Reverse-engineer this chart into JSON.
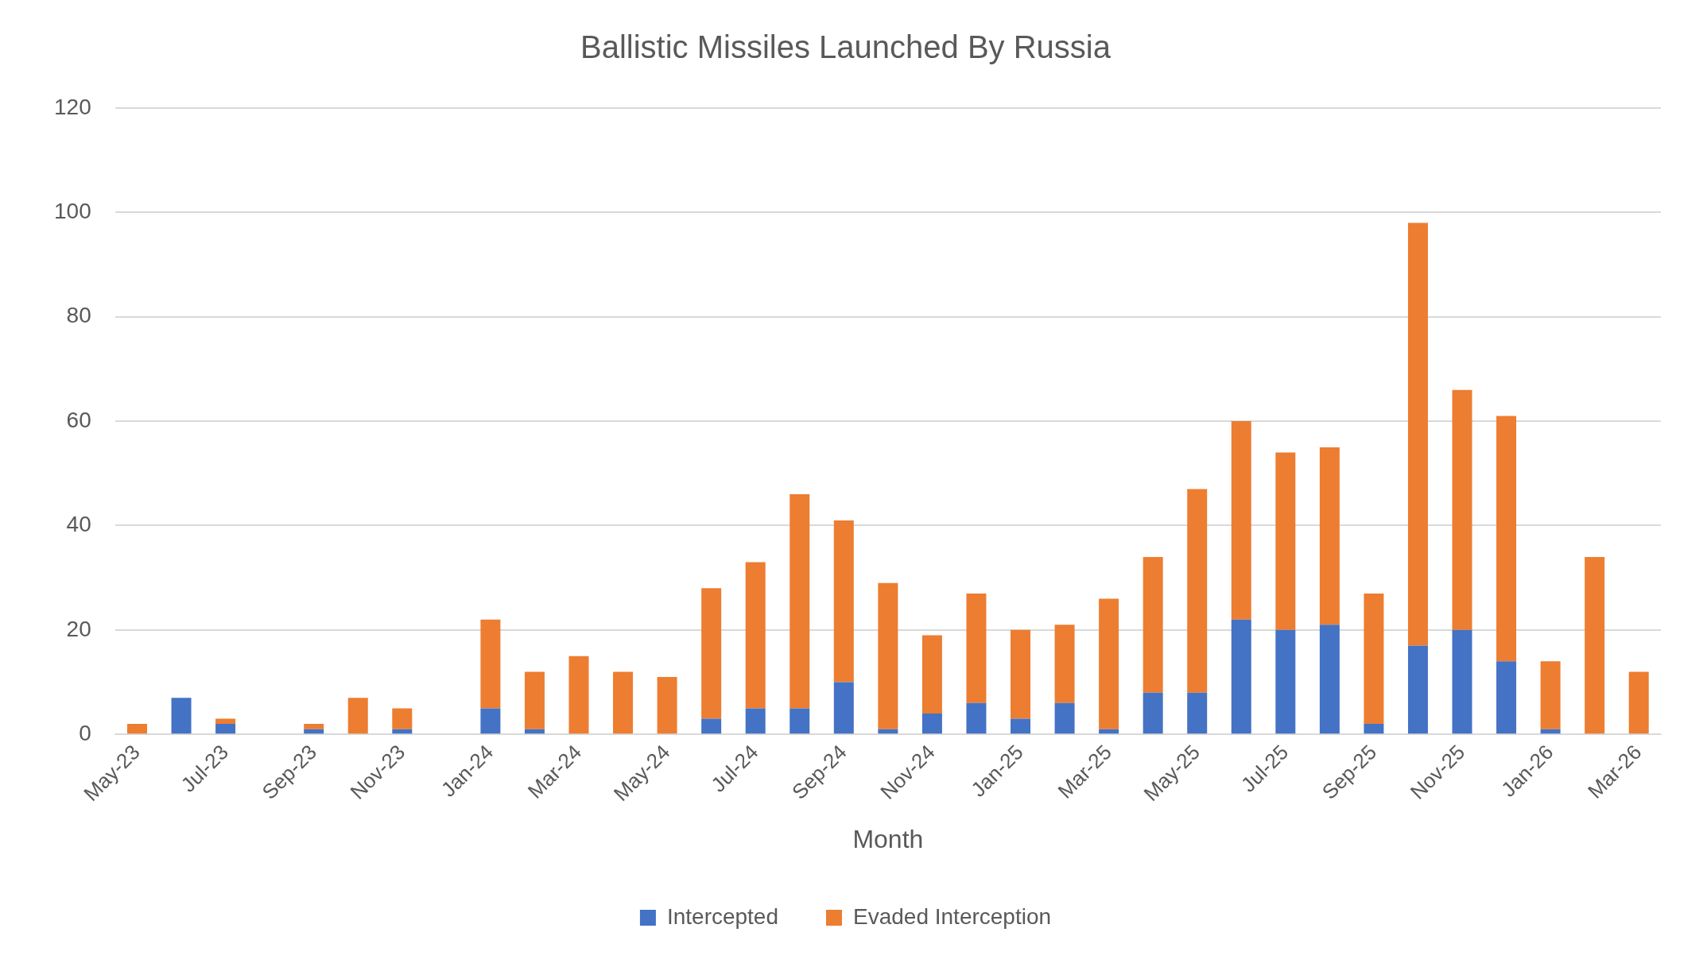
{
  "chart_data": {
    "type": "bar",
    "title": "Ballistic Missiles Launched By Russia",
    "xlabel": "Month",
    "categories": [
      "May-23",
      null,
      "Jul-23",
      null,
      "Sep-23",
      null,
      "Nov-23",
      null,
      "Jan-24",
      null,
      "Mar-24",
      null,
      "May-24",
      null,
      "Jul-24",
      null,
      "Sep-24",
      null,
      "Nov-24",
      null,
      "Jan-25",
      null,
      "Mar-25",
      null,
      "May-25",
      null,
      "Jul-25",
      null,
      "Sep-25",
      null,
      "Nov-25",
      null,
      "Jan-26",
      null,
      "Mar-26"
    ],
    "series": [
      {
        "name": "Intercepted",
        "color": "#4472c4",
        "values": [
          0,
          7,
          2,
          0,
          1,
          0,
          1,
          0,
          5,
          1,
          0,
          0,
          0,
          3,
          5,
          5,
          10,
          1,
          4,
          6,
          3,
          6,
          1,
          8,
          8,
          22,
          20,
          21,
          2,
          17,
          20,
          14,
          1,
          0,
          0
        ]
      },
      {
        "name": "Evaded Interception",
        "color": "#ed7d31",
        "values": [
          2,
          0,
          1,
          0,
          1,
          7,
          4,
          0,
          17,
          11,
          15,
          12,
          11,
          25,
          28,
          41,
          31,
          28,
          15,
          21,
          17,
          15,
          25,
          26,
          39,
          38,
          34,
          34,
          25,
          81,
          46,
          47,
          13,
          34,
          12
        ]
      }
    ],
    "stacked": true,
    "ylim": [
      0,
      120
    ],
    "yticks": [
      0,
      20,
      40,
      60,
      80,
      100,
      120
    ],
    "grid": "y",
    "legend": "bottom"
  }
}
